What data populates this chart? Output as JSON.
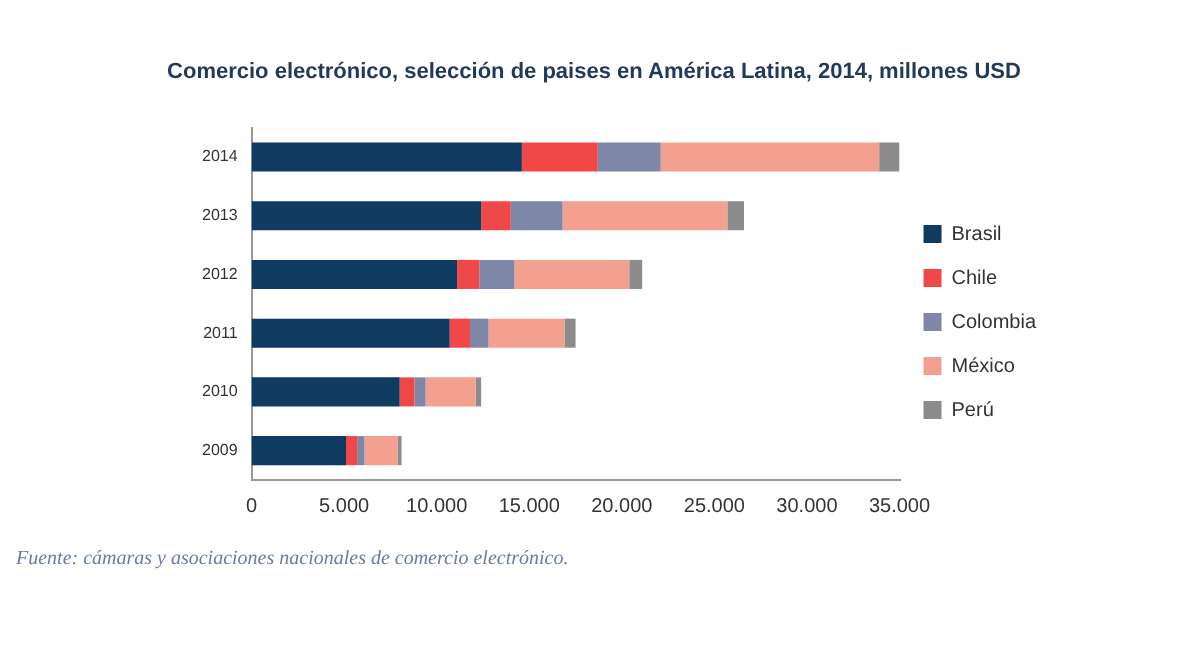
{
  "chart_data": {
    "type": "bar",
    "title": "Comercio electrónico, selección de paises en América Latina, 2014, millones USD",
    "orientation": "horizontal",
    "stacked": true,
    "legend": "right",
    "categories": [
      "2014",
      "2013",
      "2012",
      "2011",
      "2010",
      "2009"
    ],
    "series": [
      {
        "name": "Brasil",
        "color": "#0f3a62",
        "values": [
          14600.0,
          12400.0,
          11100.0,
          10700.0,
          8000.0,
          5100.0
        ]
      },
      {
        "name": "Chile",
        "color": "#f04848",
        "values": [
          4100.0,
          1600.0,
          1200.0,
          1100.0,
          800.0,
          600.0
        ]
      },
      {
        "name": "Colombia",
        "color": "#7f87a8",
        "values": [
          3400.0,
          2800.0,
          1900.0,
          1000.0,
          600.0,
          400.0
        ]
      },
      {
        "name": "México",
        "color": "#f4a090",
        "values": [
          11800.0,
          8900.0,
          6200.0,
          4100.0,
          2700.0,
          1800.0
        ]
      },
      {
        "name": "Perú",
        "color": "#8c8c8c",
        "values": [
          1100.0,
          900.0,
          700.0,
          600.0,
          300.0,
          200.0
        ]
      }
    ],
    "xlim": [
      0,
      35000
    ],
    "xticks": [
      0,
      {
        "value": 5000,
        "label": "5.000"
      },
      {
        "value": 10000,
        "label": "10.000"
      },
      {
        "value": 15000,
        "label": "15.000"
      },
      {
        "value": 20000,
        "label": "20.000"
      },
      {
        "value": 25000,
        "label": "25.000"
      },
      {
        "value": 30000,
        "label": "30.000"
      },
      {
        "value": 35000,
        "label": "35.000"
      }
    ],
    "grid": false,
    "annotations": [
      "Fuente: cámaras y asociaciones nacionales de comercio electrónico."
    ]
  }
}
